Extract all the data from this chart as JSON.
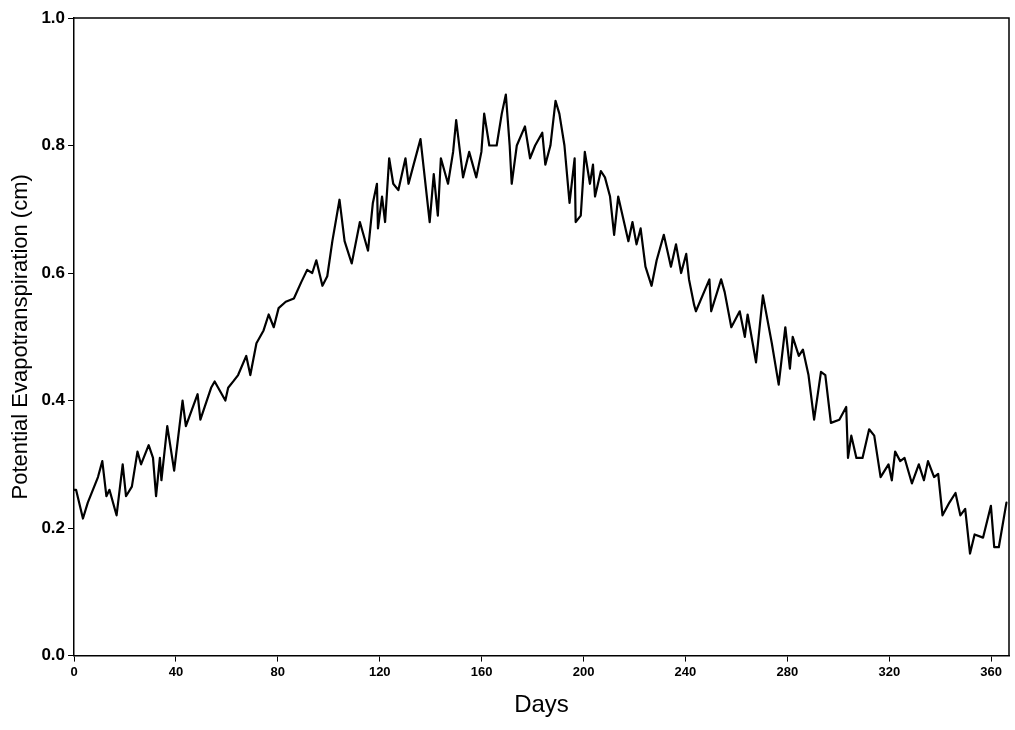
{
  "chart_data": {
    "type": "line",
    "xlabel": "Days",
    "ylabel": "Potential Evapotranspiration (cm)",
    "xlim": [
      0,
      367
    ],
    "ylim": [
      0,
      1
    ],
    "xticks": [
      0,
      40,
      80,
      120,
      160,
      200,
      240,
      280,
      320,
      360
    ],
    "yticks": [
      {
        "value": 0,
        "label": "0.0"
      },
      {
        "value": 0.2,
        "label": "0.2"
      },
      {
        "value": 0.4,
        "label": "0.4"
      },
      {
        "value": 0.6,
        "label": "0.6"
      },
      {
        "value": 0.8,
        "label": "0.8"
      },
      {
        "value": 1,
        "label": "1.0"
      }
    ],
    "grid": false,
    "legend": false,
    "marker": "none",
    "line_style": "solid",
    "series": [
      {
        "color": "#000000",
        "x": [
          0,
          0.8,
          3.5,
          5.4,
          7.4,
          9.4,
          11.1,
          12.7,
          13.9,
          16.7,
          19.1,
          20.4,
          22.7,
          24.9,
          26.3,
          29.3,
          31,
          32.2,
          33.7,
          34.3,
          36.6,
          39.3,
          42.6,
          43.9,
          48.5,
          49.6,
          53.8,
          55.2,
          59.4,
          60.5,
          62.5,
          64.4,
          67.6,
          69.2,
          71.6,
          74.4,
          76.4,
          78.4,
          80.3,
          83.1,
          86.3,
          89.1,
          91.5,
          93.5,
          95.1,
          97.5,
          99.4,
          101.4,
          104.2,
          106.2,
          109,
          112.2,
          115.4,
          117.3,
          118.9,
          119.3,
          120.9,
          122.1,
          123.7,
          125.3,
          127.3,
          130.1,
          131.3,
          133.3,
          136,
          139.6,
          141.2,
          142.8,
          144,
          146.8,
          148.8,
          150,
          152.7,
          155.1,
          157.9,
          159.9,
          161,
          163,
          165.9,
          167.9,
          169.5,
          171,
          171.8,
          173.8,
          177,
          179,
          181,
          183.8,
          185,
          187,
          189,
          190.5,
          192.5,
          194.5,
          196.5,
          196.9,
          198.9,
          200.5,
          202.5,
          203.7,
          204.5,
          206.8,
          208.4,
          210.4,
          212,
          213.6,
          217.6,
          219.2,
          220.8,
          222.4,
          224.3,
          226.7,
          228.7,
          231.5,
          234.3,
          236.3,
          238.3,
          240.3,
          241.4,
          243.4,
          244.1,
          249.4,
          250.1,
          254,
          255.4,
          258,
          261.3,
          263.3,
          264.4,
          267.7,
          270.4,
          273.9,
          276.6,
          279.2,
          281,
          282.1,
          284.5,
          286.1,
          288.3,
          290.5,
          293.2,
          294.9,
          297.1,
          300.4,
          303.1,
          303.8,
          305.1,
          307.1,
          309.5,
          312.1,
          314.1,
          316.6,
          319.7,
          321,
          322.3,
          324.3,
          326,
          328.9,
          331.6,
          333.6,
          335.2,
          337.6,
          339.2,
          340.9,
          343.6,
          346,
          347.9,
          349.8,
          351.7,
          353.5,
          356.8,
          359.9,
          361.2,
          363,
          366
        ],
        "values": [
          0.26,
          0.26,
          0.215,
          0.24,
          0.26,
          0.28,
          0.305,
          0.25,
          0.26,
          0.22,
          0.3,
          0.25,
          0.265,
          0.32,
          0.3,
          0.33,
          0.31,
          0.25,
          0.31,
          0.275,
          0.36,
          0.29,
          0.4,
          0.36,
          0.41,
          0.37,
          0.42,
          0.43,
          0.4,
          0.42,
          0.43,
          0.44,
          0.47,
          0.44,
          0.49,
          0.51,
          0.535,
          0.515,
          0.545,
          0.555,
          0.56,
          0.585,
          0.605,
          0.6,
          0.62,
          0.58,
          0.595,
          0.65,
          0.715,
          0.65,
          0.615,
          0.68,
          0.635,
          0.71,
          0.74,
          0.67,
          0.72,
          0.68,
          0.78,
          0.74,
          0.73,
          0.78,
          0.74,
          0.77,
          0.81,
          0.68,
          0.755,
          0.69,
          0.78,
          0.74,
          0.79,
          0.84,
          0.75,
          0.79,
          0.75,
          0.79,
          0.85,
          0.8,
          0.8,
          0.85,
          0.88,
          0.8,
          0.74,
          0.8,
          0.83,
          0.78,
          0.8,
          0.82,
          0.77,
          0.8,
          0.87,
          0.85,
          0.8,
          0.71,
          0.78,
          0.68,
          0.69,
          0.79,
          0.74,
          0.77,
          0.72,
          0.76,
          0.75,
          0.72,
          0.66,
          0.72,
          0.65,
          0.68,
          0.645,
          0.67,
          0.61,
          0.58,
          0.62,
          0.66,
          0.61,
          0.645,
          0.6,
          0.63,
          0.59,
          0.55,
          0.54,
          0.59,
          0.54,
          0.59,
          0.57,
          0.515,
          0.54,
          0.5,
          0.535,
          0.46,
          0.565,
          0.49,
          0.425,
          0.515,
          0.45,
          0.5,
          0.47,
          0.48,
          0.44,
          0.37,
          0.445,
          0.44,
          0.365,
          0.37,
          0.39,
          0.31,
          0.345,
          0.31,
          0.31,
          0.355,
          0.345,
          0.28,
          0.3,
          0.275,
          0.32,
          0.305,
          0.31,
          0.27,
          0.3,
          0.275,
          0.305,
          0.28,
          0.285,
          0.22,
          0.24,
          0.255,
          0.22,
          0.23,
          0.16,
          0.19,
          0.185,
          0.235,
          0.17,
          0.17,
          0.24
        ]
      }
    ]
  }
}
